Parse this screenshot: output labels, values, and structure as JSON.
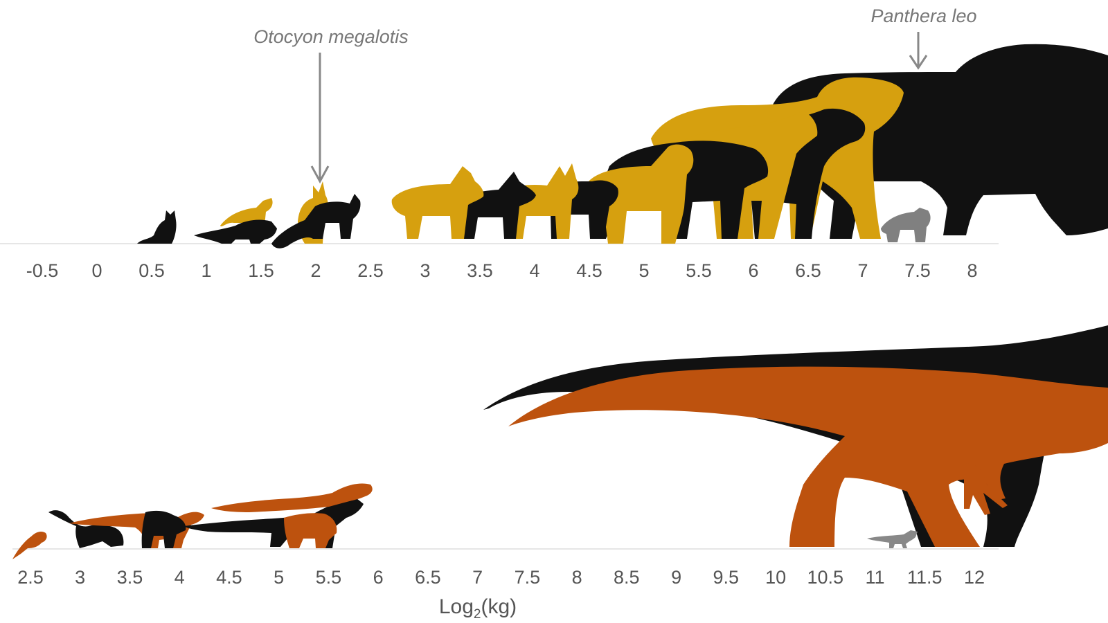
{
  "colors": {
    "black_silhouette": "#111111",
    "gold_silhouette": "#d6a00f",
    "orange_silhouette": "#bd520e",
    "grey_silhouette": "#808080",
    "annotation_arrow": "#888888",
    "tick_text": "#555555"
  },
  "top_panel": {
    "ticks": [
      "-0.5",
      "0",
      "0.5",
      "1",
      "1.5",
      "2",
      "2.5",
      "3",
      "3.5",
      "4",
      "4.5",
      "5",
      "5.5",
      "6",
      "6.5",
      "7",
      "7.5",
      "8"
    ],
    "annotations": [
      {
        "label": "Otocyon megalotis",
        "value": 2
      },
      {
        "label": "Panthera leo",
        "value": 7.5
      }
    ]
  },
  "bottom_panel": {
    "ticks": [
      "2.5",
      "3",
      "3.5",
      "4",
      "4.5",
      "5",
      "5.5",
      "6",
      "6.5",
      "7",
      "7.5",
      "8",
      "8.5",
      "9",
      "9.5",
      "10",
      "10.5",
      "11",
      "11.5",
      "12"
    ],
    "xlabel_base": "Log",
    "xlabel_sub": "2",
    "xlabel_unit": "(kg)"
  }
}
